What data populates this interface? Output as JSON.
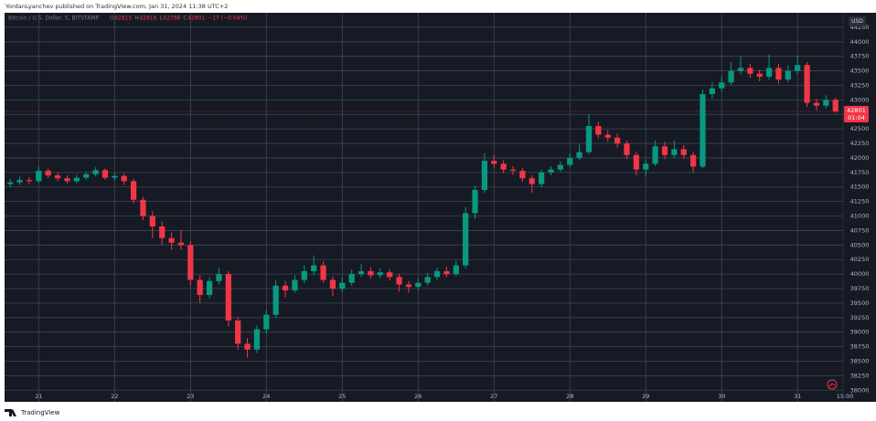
{
  "header": {
    "publisher": "YordanLyanchev published on TradingView.com, Jan 31, 2024 11:38 UTC+2",
    "symbol": "Bitcoin / U.S. Dollar, 5, BITSTAMP",
    "ohlc": [
      {
        "key": "O",
        "value": "42815"
      },
      {
        "key": "H",
        "value": "42816"
      },
      {
        "key": "L",
        "value": "42798"
      },
      {
        "key": "C",
        "value": "42801"
      }
    ],
    "change": "−17 (−0.04%)",
    "currency": "USD",
    "last_price": "42801",
    "countdown": "01:04"
  },
  "footer": {
    "brand": "TradingView"
  },
  "chart_data": {
    "type": "candlestick",
    "up_color": "#089981",
    "down_color": "#f23645",
    "grid": true,
    "xlim": [
      20.55,
      31.6
    ],
    "xticks": [
      21,
      22,
      23,
      24,
      25,
      26,
      27,
      28,
      29,
      30,
      31,
      {
        "value": 31.625,
        "label": "15:00"
      }
    ],
    "ylim": [
      37800,
      44500
    ],
    "yticks": [
      38000,
      38250,
      38500,
      38750,
      39000,
      39250,
      39500,
      39750,
      40000,
      40250,
      40500,
      40750,
      41000,
      41250,
      41500,
      41750,
      42000,
      42250,
      42500,
      42750,
      43000,
      43250,
      43500,
      43750,
      44000,
      44250
    ],
    "x": [
      20.625,
      20.75,
      20.875,
      21,
      21.125,
      21.25,
      21.375,
      21.5,
      21.625,
      21.75,
      21.875,
      22,
      22.125,
      22.25,
      22.375,
      22.5,
      22.625,
      22.75,
      22.875,
      23,
      23.125,
      23.25,
      23.375,
      23.5,
      23.625,
      23.75,
      23.875,
      24,
      24.125,
      24.25,
      24.375,
      24.5,
      24.625,
      24.75,
      24.875,
      25,
      25.125,
      25.25,
      25.375,
      25.5,
      25.625,
      25.75,
      25.875,
      26,
      26.125,
      26.25,
      26.375,
      26.5,
      26.625,
      26.75,
      26.875,
      27,
      27.125,
      27.25,
      27.375,
      27.5,
      27.625,
      27.75,
      27.875,
      28,
      28.125,
      28.25,
      28.375,
      28.5,
      28.625,
      28.75,
      28.875,
      29,
      29.125,
      29.25,
      29.375,
      29.5,
      29.625,
      29.75,
      29.875,
      30,
      30.125,
      30.25,
      30.375,
      30.5,
      30.625,
      30.75,
      30.875,
      31,
      31.125,
      31.25,
      31.375,
      31.5
    ],
    "open": [
      41550,
      41580,
      41620,
      41600,
      41780,
      41700,
      41650,
      41600,
      41660,
      41720,
      41790,
      41660,
      41690,
      41600,
      41280,
      41000,
      40820,
      40620,
      40540,
      40500,
      39900,
      39640,
      39880,
      40000,
      39200,
      38800,
      38700,
      39050,
      39300,
      39800,
      39720,
      39900,
      40050,
      40150,
      39900,
      39750,
      39850,
      40000,
      40050,
      39980,
      40030,
      39950,
      39820,
      39780,
      39850,
      39950,
      40050,
      40000,
      40150,
      41050,
      41450,
      41950,
      41900,
      41800,
      41780,
      41650,
      41550,
      41750,
      41800,
      41880,
      42000,
      42100,
      42550,
      42400,
      42350,
      42250,
      42050,
      41800,
      41900,
      42200,
      42050,
      42150,
      42050,
      41850,
      43100,
      43200,
      43300,
      43500,
      43550,
      43450,
      43400,
      43550,
      43350,
      43500,
      43600,
      42950,
      42900,
      43000
    ],
    "high": [
      41640,
      41680,
      41670,
      41850,
      41820,
      41750,
      41700,
      41710,
      41770,
      41840,
      41820,
      41740,
      41730,
      41640,
      41330,
      41080,
      40900,
      40720,
      40750,
      40560,
      39980,
      39950,
      40110,
      40050,
      39260,
      38900,
      39120,
      39380,
      39900,
      39880,
      39980,
      40150,
      40320,
      40220,
      39960,
      39940,
      40080,
      40170,
      40120,
      40100,
      40090,
      40000,
      39880,
      39920,
      40020,
      40110,
      40130,
      40230,
      41150,
      41520,
      42080,
      42050,
      41960,
      41860,
      41830,
      41700,
      41800,
      41860,
      41940,
      42080,
      42230,
      42750,
      42620,
      42480,
      42420,
      42300,
      42100,
      41980,
      42300,
      42280,
      42300,
      42220,
      42100,
      43180,
      43300,
      43400,
      43650,
      43750,
      43620,
      43520,
      43780,
      43620,
      43600,
      43760,
      43650,
      43020,
      43080,
      43040
    ],
    "low": [
      41500,
      41540,
      41550,
      41570,
      41650,
      41600,
      41560,
      41560,
      41620,
      41680,
      41620,
      41610,
      41540,
      41220,
      40930,
      40620,
      40500,
      40420,
      40420,
      39800,
      39500,
      39580,
      39820,
      39100,
      38700,
      38560,
      38640,
      38980,
      39250,
      39600,
      39680,
      39840,
      39980,
      39850,
      39620,
      39690,
      39800,
      39950,
      39920,
      39930,
      39890,
      39700,
      39680,
      39720,
      39800,
      39900,
      39950,
      39960,
      40100,
      40950,
      41400,
      41830,
      41740,
      41710,
      41590,
      41400,
      41500,
      41700,
      41760,
      41840,
      41960,
      42060,
      42340,
      42280,
      42180,
      41980,
      41700,
      41680,
      41860,
      41980,
      42000,
      41980,
      41750,
      41820,
      43020,
      43140,
      43250,
      43440,
      43380,
      43320,
      43350,
      43280,
      43300,
      43440,
      42880,
      42820,
      42850,
      42780
    ],
    "close": [
      41580,
      41620,
      41600,
      41780,
      41700,
      41650,
      41600,
      41660,
      41720,
      41790,
      41660,
      41690,
      41600,
      41280,
      41000,
      40820,
      40620,
      40540,
      40500,
      39900,
      39640,
      39880,
      40000,
      39200,
      38800,
      38700,
      39050,
      39300,
      39800,
      39720,
      39900,
      40050,
      40150,
      39900,
      39750,
      39850,
      40000,
      40050,
      39980,
      40030,
      39950,
      39820,
      39780,
      39850,
      39950,
      40050,
      40000,
      40150,
      41050,
      41450,
      41950,
      41900,
      41800,
      41780,
      41650,
      41550,
      41750,
      41800,
      41880,
      42000,
      42100,
      42550,
      42400,
      42350,
      42250,
      42050,
      41800,
      41900,
      42200,
      42050,
      42150,
      42050,
      41850,
      43100,
      43200,
      43300,
      43500,
      43550,
      43450,
      43400,
      43550,
      43350,
      43500,
      43600,
      42950,
      42900,
      43000,
      42801
    ]
  }
}
